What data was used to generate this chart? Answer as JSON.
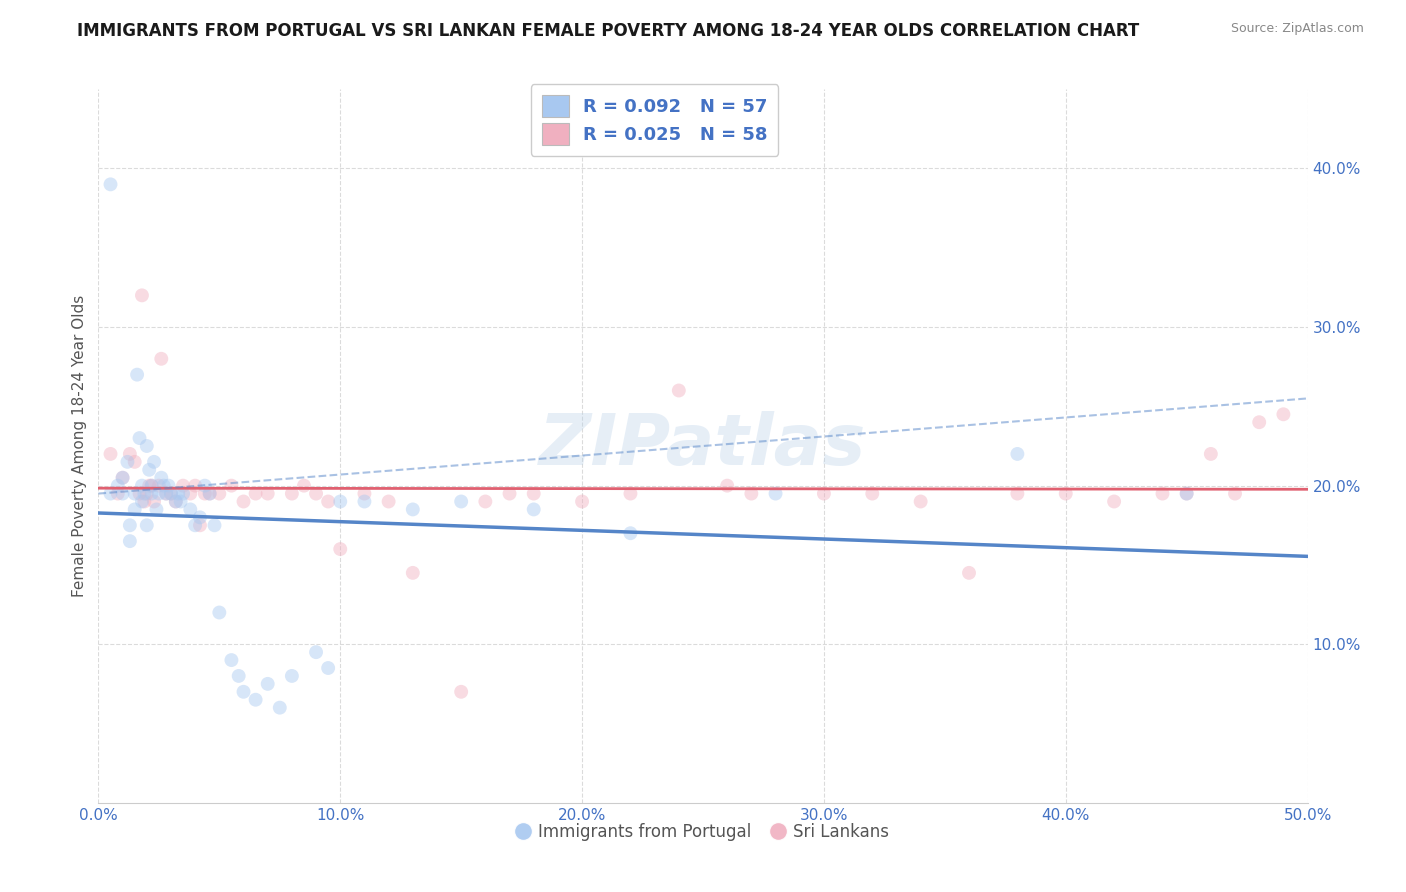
{
  "title": "IMMIGRANTS FROM PORTUGAL VS SRI LANKAN FEMALE POVERTY AMONG 18-24 YEAR OLDS CORRELATION CHART",
  "source": "Source: ZipAtlas.com",
  "ylabel": "Female Poverty Among 18-24 Year Olds",
  "xlim": [
    0.0,
    0.5
  ],
  "ylim": [
    0.0,
    0.45
  ],
  "xticks": [
    0.0,
    0.1,
    0.2,
    0.3,
    0.4,
    0.5
  ],
  "xtick_labels": [
    "0.0%",
    "10.0%",
    "20.0%",
    "30.0%",
    "40.0%",
    "50.0%"
  ],
  "yticks": [
    0.1,
    0.2,
    0.3,
    0.4
  ],
  "ytick_labels": [
    "10.0%",
    "20.0%",
    "30.0%",
    "40.0%"
  ],
  "blue_R": 0.092,
  "blue_N": 57,
  "pink_R": 0.025,
  "pink_N": 58,
  "blue_color": "#a8c8f0",
  "pink_color": "#f0b0c0",
  "blue_line_color": "#5585c8",
  "pink_line_color": "#e06070",
  "watermark_text": "ZIPatlas",
  "blue_scatter_x": [
    0.005,
    0.005,
    0.008,
    0.01,
    0.01,
    0.012,
    0.013,
    0.013,
    0.015,
    0.015,
    0.016,
    0.017,
    0.018,
    0.018,
    0.019,
    0.02,
    0.02,
    0.021,
    0.022,
    0.022,
    0.023,
    0.024,
    0.025,
    0.026,
    0.027,
    0.028,
    0.029,
    0.03,
    0.032,
    0.033,
    0.034,
    0.035,
    0.038,
    0.04,
    0.042,
    0.044,
    0.046,
    0.048,
    0.05,
    0.055,
    0.058,
    0.06,
    0.065,
    0.07,
    0.075,
    0.08,
    0.09,
    0.095,
    0.1,
    0.11,
    0.13,
    0.15,
    0.18,
    0.22,
    0.28,
    0.38,
    0.45
  ],
  "blue_scatter_y": [
    0.39,
    0.195,
    0.2,
    0.205,
    0.195,
    0.215,
    0.175,
    0.165,
    0.195,
    0.185,
    0.27,
    0.23,
    0.19,
    0.2,
    0.195,
    0.225,
    0.175,
    0.21,
    0.195,
    0.2,
    0.215,
    0.185,
    0.195,
    0.205,
    0.2,
    0.195,
    0.2,
    0.195,
    0.19,
    0.195,
    0.19,
    0.195,
    0.185,
    0.175,
    0.18,
    0.2,
    0.195,
    0.175,
    0.12,
    0.09,
    0.08,
    0.07,
    0.065,
    0.075,
    0.06,
    0.08,
    0.095,
    0.085,
    0.19,
    0.19,
    0.185,
    0.19,
    0.185,
    0.17,
    0.195,
    0.22,
    0.195
  ],
  "pink_scatter_x": [
    0.005,
    0.008,
    0.01,
    0.013,
    0.015,
    0.017,
    0.018,
    0.019,
    0.02,
    0.021,
    0.022,
    0.023,
    0.025,
    0.026,
    0.028,
    0.03,
    0.032,
    0.035,
    0.038,
    0.04,
    0.042,
    0.044,
    0.046,
    0.05,
    0.055,
    0.06,
    0.065,
    0.07,
    0.08,
    0.085,
    0.09,
    0.095,
    0.1,
    0.11,
    0.12,
    0.13,
    0.15,
    0.16,
    0.17,
    0.18,
    0.2,
    0.22,
    0.24,
    0.26,
    0.27,
    0.3,
    0.32,
    0.34,
    0.36,
    0.38,
    0.4,
    0.42,
    0.44,
    0.45,
    0.46,
    0.47,
    0.48,
    0.49
  ],
  "pink_scatter_y": [
    0.22,
    0.195,
    0.205,
    0.22,
    0.215,
    0.195,
    0.32,
    0.19,
    0.195,
    0.2,
    0.2,
    0.19,
    0.2,
    0.28,
    0.195,
    0.195,
    0.19,
    0.2,
    0.195,
    0.2,
    0.175,
    0.195,
    0.195,
    0.195,
    0.2,
    0.19,
    0.195,
    0.195,
    0.195,
    0.2,
    0.195,
    0.19,
    0.16,
    0.195,
    0.19,
    0.145,
    0.07,
    0.19,
    0.195,
    0.195,
    0.19,
    0.195,
    0.26,
    0.2,
    0.195,
    0.195,
    0.195,
    0.19,
    0.145,
    0.195,
    0.195,
    0.19,
    0.195,
    0.195,
    0.22,
    0.195,
    0.24,
    0.245
  ],
  "grid_color": "#d8d8d8",
  "background_color": "#ffffff",
  "legend_text_color": "#4472c4",
  "title_fontsize": 12,
  "axis_label_fontsize": 11,
  "tick_fontsize": 11,
  "marker_size": 100,
  "marker_alpha": 0.45
}
